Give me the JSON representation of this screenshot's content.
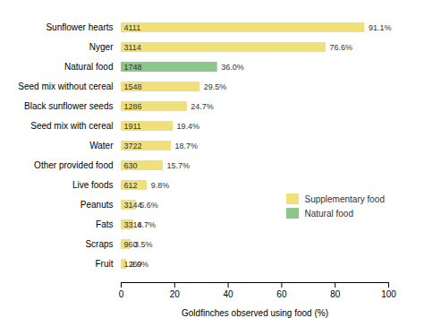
{
  "chart_data": {
    "type": "bar",
    "orientation": "horizontal",
    "categories": [
      "Sunflower hearts",
      "Nyger",
      "Natural food",
      "Seed mix without cereal",
      "Black sunflower seeds",
      "Seed mix with cereal",
      "Water",
      "Other provided food",
      "Live foods",
      "Peanuts",
      "Fats",
      "Scraps",
      "Fruit"
    ],
    "values": [
      91.1,
      76.6,
      36.0,
      29.5,
      24.7,
      19.4,
      18.7,
      15.7,
      9.8,
      5.6,
      4.7,
      3.5,
      2.0
    ],
    "value_labels": [
      "91.1%",
      "76.6%",
      "36.0%",
      "29.5%",
      "24.7%",
      "19.4%",
      "18.7%",
      "15.7%",
      "9.8%",
      "5.6%",
      "4.7%",
      "3.5%",
      "2.0%"
    ],
    "counts": [
      4111,
      3114,
      1748,
      1548,
      1286,
      1911,
      3722,
      630,
      612,
      3144,
      3316,
      960,
      1269
    ],
    "colors": [
      "#f0e07a",
      "#f0e07a",
      "#8dc68a",
      "#f0e07a",
      "#f0e07a",
      "#f0e07a",
      "#f0e07a",
      "#f0e07a",
      "#f0e07a",
      "#f0e07a",
      "#f0e07a",
      "#f0e07a",
      "#f0e07a"
    ],
    "legend_items": [
      {
        "name": "Supplementary food",
        "color": "#f0e07a"
      },
      {
        "name": "Natural food",
        "color": "#8dc68a"
      }
    ],
    "legend": "lower right",
    "xlabel": "Goldfinches observed using food (%)",
    "xlim": [
      0,
      100
    ],
    "xticks": [
      0,
      20,
      40,
      60,
      80,
      100
    ],
    "data_labels": true,
    "grid": false
  }
}
